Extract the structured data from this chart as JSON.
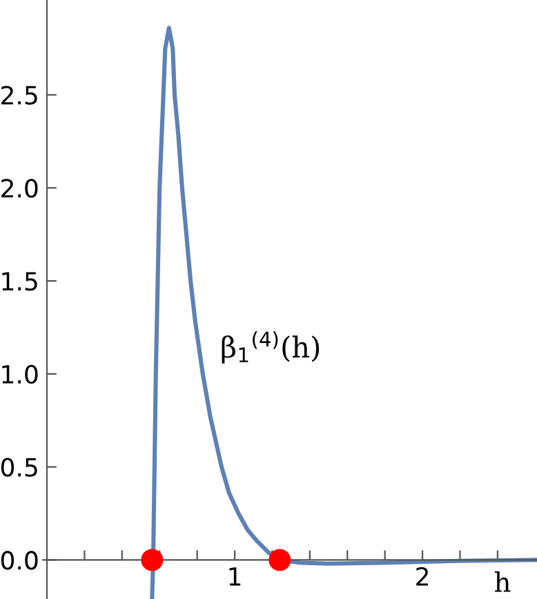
{
  "chart_data": {
    "type": "line",
    "xlabel": "h",
    "xlim": [
      -0.25,
      2.61
    ],
    "ylim": [
      -0.21,
      3.01
    ],
    "xticks": [
      {
        "value": 0.2,
        "label": null
      },
      {
        "value": 0.4,
        "label": null
      },
      {
        "value": 0.6,
        "label": null
      },
      {
        "value": 0.8,
        "label": null
      },
      1,
      {
        "value": 1.2,
        "label": null
      },
      {
        "value": 1.4,
        "label": null
      },
      {
        "value": 1.6,
        "label": null
      },
      {
        "value": 1.8,
        "label": null
      },
      2,
      {
        "value": 2.2,
        "label": null
      },
      {
        "value": 2.4,
        "label": null
      }
    ],
    "yticks": [
      {
        "value": 0,
        "label": "0.0"
      },
      0.5,
      {
        "value": 1,
        "label": "1.0"
      },
      1.5,
      {
        "value": 2,
        "label": "2.0"
      },
      2.5
    ],
    "annotations": [
      "β$_{1}$$^{(4)}$(h)"
    ],
    "grid": false,
    "legend": false,
    "series": [
      {
        "color": "#5e81b5",
        "x": [
          0.56,
          0.566,
          0.58,
          0.6,
          0.62,
          0.63,
          0.65,
          0.67,
          0.68,
          0.7,
          0.72,
          0.74,
          0.765,
          0.79,
          0.83,
          0.87,
          0.93,
          0.97,
          1.02,
          1.07,
          1.12,
          1.18,
          1.24,
          1.35,
          1.5,
          1.8,
          2.2,
          2.6
        ],
        "values": [
          -0.21,
          0,
          1.0,
          2.0,
          2.5,
          2.75,
          2.86,
          2.75,
          2.5,
          2.28,
          2.0,
          1.78,
          1.5,
          1.28,
          1.0,
          0.77,
          0.5,
          0.36,
          0.25,
          0.16,
          0.1,
          0.04,
          0,
          -0.015,
          -0.02,
          -0.015,
          -0.005,
          0
        ]
      },
      {
        "type": "scatter",
        "color": "#ff0000",
        "marker": "circle",
        "x": [
          0.56,
          1.24
        ],
        "values": [
          0,
          0
        ]
      }
    ]
  }
}
